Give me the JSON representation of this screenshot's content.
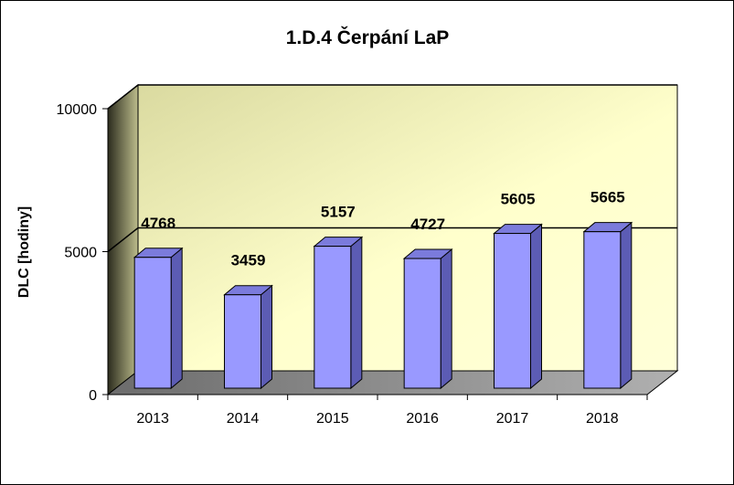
{
  "chart_data": {
    "type": "bar",
    "title": "1.D.4 Čerpání LaP",
    "xlabel": "",
    "ylabel": "DLC [hodiny]",
    "categories": [
      "2013",
      "2014",
      "2015",
      "2016",
      "2017",
      "2018"
    ],
    "values": [
      4768,
      3459,
      5157,
      4727,
      5605,
      5665
    ],
    "ylim": [
      0,
      10000
    ],
    "yticks": [
      "0",
      "5000",
      "10000"
    ],
    "data_labels": [
      "4768",
      "3459",
      "5157",
      "4727",
      "5605",
      "5665"
    ],
    "grid": true,
    "legend": "none",
    "three_d": true,
    "colors": {
      "bar_front": "#9999ff",
      "bar_side": "#5c5cb4",
      "bar_top": "#7b7bdc",
      "back_wall": "#ffffcc",
      "floor": "#9a9a9a",
      "side_wall": "#6e6e4a"
    }
  }
}
